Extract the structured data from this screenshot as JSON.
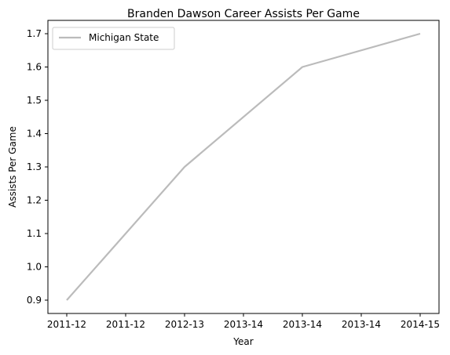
{
  "chart_data": {
    "type": "line",
    "title": "Branden Dawson Career Assists Per Game",
    "xlabel": "Year",
    "ylabel": "Assists Per Game",
    "x_tick_labels": [
      "2011-12",
      "2011-12",
      "2012-13",
      "2013-14",
      "2013-14",
      "2013-14",
      "2014-15"
    ],
    "y_ticks": [
      "0.9",
      "1.0",
      "1.1",
      "1.2",
      "1.3",
      "1.4",
      "1.5",
      "1.6",
      "1.7"
    ],
    "ylim": [
      0.86,
      1.74
    ],
    "xlim": [
      -0.16,
      3.16
    ],
    "grid": false,
    "legend_position": "upper-left",
    "series": [
      {
        "name": "Michigan State",
        "color": "#bbbbbb",
        "x": [
          0,
          1,
          2,
          3
        ],
        "x_labels": [
          "2011-12",
          "2012-13",
          "2013-14",
          "2014-15"
        ],
        "values": [
          0.9,
          1.3,
          1.6,
          1.7
        ]
      }
    ]
  }
}
